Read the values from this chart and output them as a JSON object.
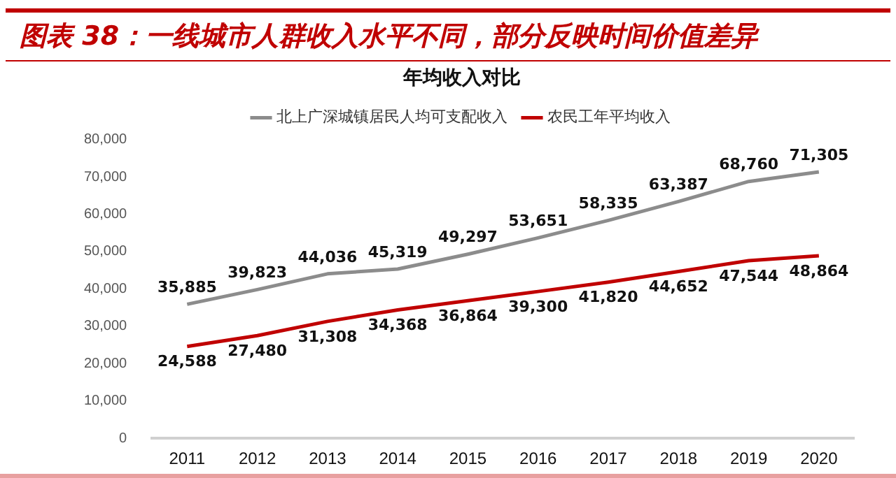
{
  "chart_data": {
    "type": "line",
    "title": "图表 38：一线城市人群收入水平不同，部分反映时间价值差异",
    "subtitle": "年均收入对比",
    "categories": [
      "2011",
      "2012",
      "2013",
      "2014",
      "2015",
      "2016",
      "2017",
      "2018",
      "2019",
      "2020"
    ],
    "series": [
      {
        "name": "北上广深城镇居民人均可支配收入",
        "color": "#8c8c8c",
        "values": [
          35885,
          39823,
          44036,
          45319,
          49297,
          53651,
          58335,
          63387,
          68760,
          71305
        ],
        "value_labels": [
          "35,885",
          "39,823",
          "44,036",
          "45,319",
          "49,297",
          "53,651",
          "58,335",
          "63,387",
          "68,760",
          "71,305"
        ]
      },
      {
        "name": "农民工年平均收入",
        "color": "#c00000",
        "values": [
          24588,
          27480,
          31308,
          34368,
          36864,
          39300,
          41820,
          44652,
          47544,
          48864
        ],
        "value_labels": [
          "24,588",
          "27,480",
          "31,308",
          "34,368",
          "36,864",
          "39,300",
          "41,820",
          "44,652",
          "47,544",
          "48,864"
        ]
      }
    ],
    "ylim": [
      0,
      80000
    ],
    "yticks": [
      {
        "value": 0,
        "label": "0"
      },
      {
        "value": 10000,
        "label": "10,000"
      },
      {
        "value": 20000,
        "label": "20,000"
      },
      {
        "value": 30000,
        "label": "30,000"
      },
      {
        "value": 40000,
        "label": "40,000"
      },
      {
        "value": 50000,
        "label": "50,000"
      },
      {
        "value": 60000,
        "label": "60,000"
      },
      {
        "value": 70000,
        "label": "70,000"
      },
      {
        "value": 80000,
        "label": "80,000"
      }
    ],
    "grid": false,
    "legend": "top",
    "marker": "none",
    "line_style": "solid"
  }
}
